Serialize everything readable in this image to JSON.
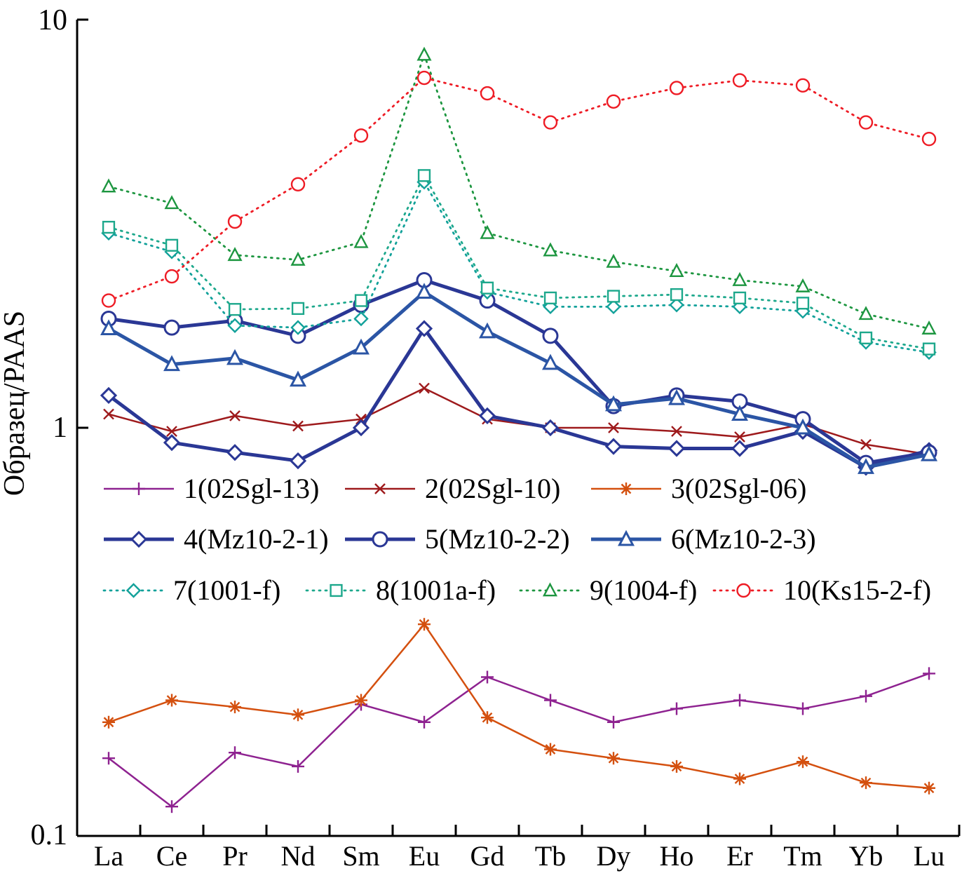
{
  "chart_data": {
    "type": "line",
    "title": "",
    "xlabel": "",
    "ylabel": "Образец/PAAS",
    "y_scale": "log",
    "ylim": [
      0.1,
      10
    ],
    "y_ticks": [
      {
        "value": 10,
        "label": "10"
      },
      {
        "value": 1,
        "label": "1"
      },
      {
        "value": 0.1,
        "label": "0.1"
      }
    ],
    "categories": [
      "La",
      "Ce",
      "Pr",
      "Nd",
      "Sm",
      "Eu",
      "Gd",
      "Tb",
      "Dy",
      "Ho",
      "Er",
      "Tm",
      "Yb",
      "Lu"
    ],
    "grid": "off",
    "legend_position": "inside-middle",
    "series": [
      {
        "name": "1(02Sgl-13)",
        "color": "#8e2290",
        "marker": "plus",
        "line": "solid",
        "stroke_width": 2.5,
        "values": [
          0.155,
          0.118,
          0.16,
          0.148,
          0.21,
          0.19,
          0.245,
          0.215,
          0.19,
          0.205,
          0.215,
          0.205,
          0.22,
          0.25
        ]
      },
      {
        "name": "2(02Sgl-10)",
        "color": "#9e1a1c",
        "marker": "x",
        "line": "solid",
        "stroke_width": 2.5,
        "values": [
          1.08,
          0.98,
          1.07,
          1.01,
          1.05,
          1.25,
          1.05,
          1.0,
          1.0,
          0.98,
          0.95,
          1.02,
          0.91,
          0.86
        ]
      },
      {
        "name": "3(02Sgl-06)",
        "color": "#d4500f",
        "marker": "asterisk",
        "line": "solid",
        "stroke_width": 2.5,
        "values": [
          0.19,
          0.215,
          0.207,
          0.198,
          0.215,
          0.33,
          0.195,
          0.163,
          0.155,
          0.148,
          0.138,
          0.152,
          0.135,
          0.131
        ]
      },
      {
        "name": "4(Mz10-2-1)",
        "color": "#2a3795",
        "marker": "diamond",
        "line": "solid",
        "stroke_width": 5,
        "values": [
          1.2,
          0.92,
          0.87,
          0.83,
          1.0,
          1.75,
          1.07,
          1.0,
          0.9,
          0.89,
          0.89,
          0.98,
          0.8,
          0.88
        ]
      },
      {
        "name": "5(Mz10-2-2)",
        "color": "#2a3795",
        "marker": "circle",
        "line": "solid",
        "stroke_width": 5,
        "values": [
          1.85,
          1.76,
          1.83,
          1.68,
          2.0,
          2.3,
          2.05,
          1.68,
          1.13,
          1.2,
          1.16,
          1.05,
          0.82,
          0.87
        ]
      },
      {
        "name": "6(Mz10-2-3)",
        "color": "#2b55a5",
        "marker": "triangle",
        "line": "solid",
        "stroke_width": 5,
        "values": [
          1.75,
          1.43,
          1.48,
          1.31,
          1.57,
          2.15,
          1.72,
          1.44,
          1.14,
          1.18,
          1.08,
          1.0,
          0.8,
          0.86
        ]
      },
      {
        "name": "7(1001-f)",
        "color": "#12a19a",
        "marker": "diamond",
        "line": "dotted",
        "stroke_width": 2.8,
        "values": [
          3.0,
          2.7,
          1.78,
          1.76,
          1.85,
          4.0,
          2.15,
          1.98,
          1.98,
          2.0,
          1.98,
          1.93,
          1.62,
          1.53
        ]
      },
      {
        "name": "8(1001a-f)",
        "color": "#1da88c",
        "marker": "square",
        "line": "dotted",
        "stroke_width": 2.8,
        "values": [
          3.1,
          2.8,
          1.95,
          1.96,
          2.05,
          4.15,
          2.2,
          2.08,
          2.1,
          2.12,
          2.08,
          2.02,
          1.66,
          1.56
        ]
      },
      {
        "name": "9(1004-f)",
        "color": "#1d9640",
        "marker": "triangle",
        "line": "dotted",
        "stroke_width": 2.8,
        "values": [
          3.9,
          3.55,
          2.65,
          2.58,
          2.85,
          8.2,
          3.0,
          2.72,
          2.55,
          2.42,
          2.3,
          2.22,
          1.9,
          1.75
        ]
      },
      {
        "name": "10(Ks15-2-f)",
        "color": "#ee1c25",
        "marker": "circle",
        "line": "dotted",
        "stroke_width": 2.8,
        "values": [
          2.05,
          2.35,
          3.2,
          3.95,
          5.2,
          7.2,
          6.6,
          5.6,
          6.3,
          6.8,
          7.1,
          6.9,
          5.6,
          5.1
        ]
      }
    ],
    "legend_rows": [
      [
        0,
        1,
        2
      ],
      [
        3,
        4,
        5
      ],
      [
        6,
        7,
        8,
        9
      ]
    ]
  }
}
